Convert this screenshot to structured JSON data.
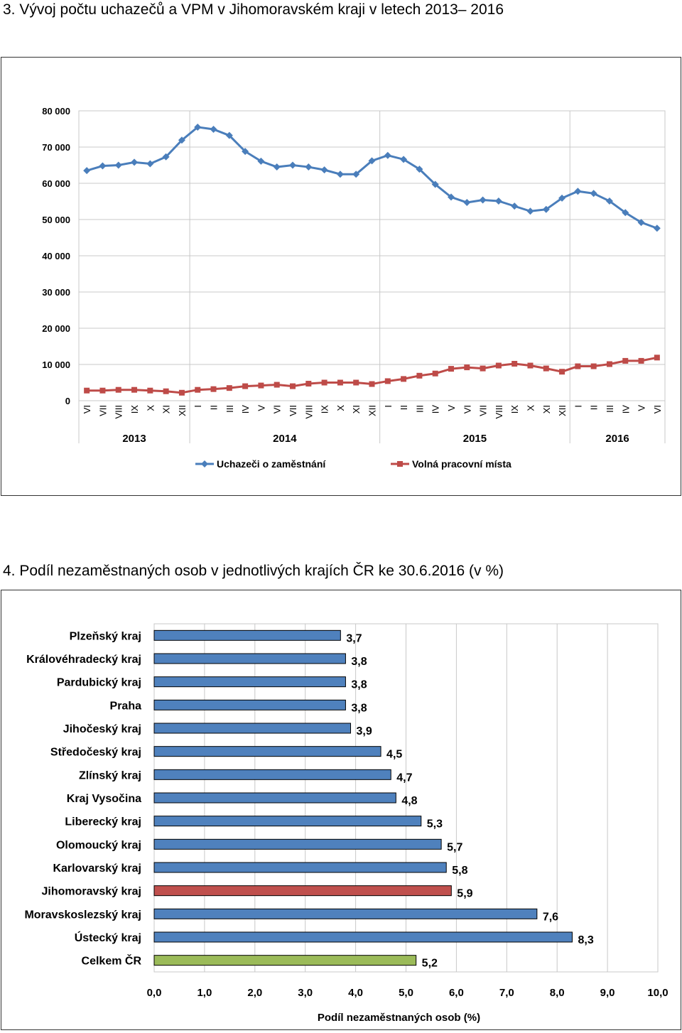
{
  "section1": {
    "title": "3.  Vývoj počtu uchazečů a VPM v Jihomoravském kraji v letech 2013– 2016"
  },
  "section2": {
    "title": "4.  Podíl nezaměstnaných osob v jednotlivých krajích ČR ke 30.6.2016 (v %)"
  },
  "chart_data": [
    {
      "type": "line",
      "title": "",
      "xlabel": "",
      "ylabel": "",
      "ylim": [
        0,
        80000
      ],
      "y_ticks": [
        "0",
        "10 000",
        "20 000",
        "30 000",
        "40 000",
        "50 000",
        "60 000",
        "70 000",
        "80 000"
      ],
      "y_tick_values": [
        0,
        10000,
        20000,
        30000,
        40000,
        50000,
        60000,
        70000,
        80000
      ],
      "grid": true,
      "legend_position": "bottom",
      "categories": [
        "VI",
        "VII",
        "VIII",
        "IX",
        "X",
        "XI",
        "XII",
        "I",
        "II",
        "III",
        "IV",
        "V",
        "VI",
        "VII",
        "VIII",
        "IX",
        "X",
        "XI",
        "XII",
        "I",
        "II",
        "III",
        "IV",
        "V",
        "VI",
        "VII",
        "VIII",
        "IX",
        "X",
        "XI",
        "XII",
        "I",
        "II",
        "III",
        "IV",
        "V",
        "VI"
      ],
      "year_groups": [
        {
          "label": "2013",
          "start": 0,
          "end": 6
        },
        {
          "label": "2014",
          "start": 7,
          "end": 18
        },
        {
          "label": "2015",
          "start": 19,
          "end": 30
        },
        {
          "label": "2016",
          "start": 31,
          "end": 36
        }
      ],
      "series": [
        {
          "name": "Uchazeči o zaměstnání",
          "color": "#4a7ebb",
          "marker": "diamond",
          "values": [
            63500,
            64800,
            65000,
            65800,
            65400,
            67300,
            71900,
            75500,
            74900,
            73200,
            68800,
            66100,
            64500,
            65000,
            64500,
            63700,
            62500,
            62500,
            66200,
            67700,
            66600,
            63900,
            59700,
            56200,
            54700,
            55400,
            55100,
            53700,
            52300,
            52800,
            55900,
            57800,
            57200,
            55100,
            51900,
            49200,
            47600
          ]
        },
        {
          "name": "Volná pracovní místa",
          "color": "#be4b48",
          "marker": "square",
          "values": [
            2800,
            2800,
            3000,
            3000,
            2800,
            2600,
            2200,
            3000,
            3200,
            3500,
            4000,
            4200,
            4400,
            4000,
            4700,
            5000,
            5000,
            5000,
            4600,
            5400,
            6000,
            6900,
            7500,
            8800,
            9200,
            8900,
            9700,
            10200,
            9700,
            8900,
            8000,
            9500,
            9500,
            10100,
            11000,
            11000,
            11900
          ]
        }
      ]
    },
    {
      "type": "bar",
      "orientation": "horizontal",
      "title": "",
      "xlabel": "Podíl nezaměstnaných osob (%)",
      "ylabel": "",
      "xlim": [
        0,
        10
      ],
      "x_ticks": [
        "0,0",
        "1,0",
        "2,0",
        "3,0",
        "4,0",
        "5,0",
        "6,0",
        "7,0",
        "8,0",
        "9,0",
        "10,0"
      ],
      "x_tick_values": [
        0,
        1,
        2,
        3,
        4,
        5,
        6,
        7,
        8,
        9,
        10
      ],
      "grid": true,
      "categories": [
        "Plzeňský kraj",
        "Královéhradecký kraj",
        "Pardubický kraj",
        "Praha",
        "Jihočeský kraj",
        "Středočeský kraj",
        "Zlínský kraj",
        "Kraj Vysočina",
        "Liberecký kraj",
        "Olomoucký kraj",
        "Karlovarský kraj",
        "Jihomoravský kraj",
        "Moravskoslezský kraj",
        "Ústecký kraj",
        "Celkem ČR"
      ],
      "values": [
        3.7,
        3.8,
        3.8,
        3.8,
        3.9,
        4.5,
        4.7,
        4.8,
        5.3,
        5.7,
        5.8,
        5.9,
        7.6,
        8.3,
        5.2
      ],
      "value_labels": [
        "3,7",
        "3,8",
        "3,8",
        "3,8",
        "3,9",
        "4,5",
        "4,7",
        "4,8",
        "5,3",
        "5,7",
        "5,8",
        "5,9",
        "7,6",
        "8,3",
        "5,2"
      ],
      "colors": [
        "#4f81bd",
        "#4f81bd",
        "#4f81bd",
        "#4f81bd",
        "#4f81bd",
        "#4f81bd",
        "#4f81bd",
        "#4f81bd",
        "#4f81bd",
        "#4f81bd",
        "#4f81bd",
        "#c0504d",
        "#4f81bd",
        "#4f81bd",
        "#9bbb59"
      ]
    }
  ]
}
